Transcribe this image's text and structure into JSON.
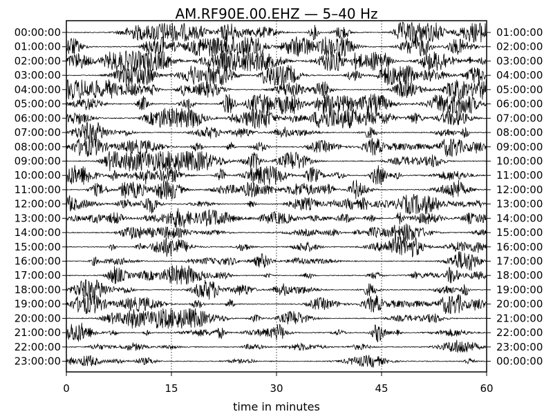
{
  "chart_data": {
    "type": "line",
    "title": "AM.RF90E.00.EHZ — 5–40 Hz",
    "xlabel": "time in minutes",
    "ylabel": "",
    "xlim": [
      0,
      60
    ],
    "x_ticks": [
      0,
      15,
      30,
      45,
      60
    ],
    "x_tick_labels": [
      "0",
      "15",
      "30",
      "45",
      "60"
    ],
    "grid": "vertical dotted lines at 15, 30, 45 minutes",
    "colors": {
      "trace": "#000000",
      "gridline": "#000000",
      "background": "#ffffff"
    },
    "rows_left_labels": [
      "00:00:00",
      "01:00:00",
      "02:00:00",
      "03:00:00",
      "04:00:00",
      "05:00:00",
      "06:00:00",
      "07:00:00",
      "08:00:00",
      "09:00:00",
      "10:00:00",
      "11:00:00",
      "12:00:00",
      "13:00:00",
      "14:00:00",
      "15:00:00",
      "16:00:00",
      "17:00:00",
      "18:00:00",
      "19:00:00",
      "20:00:00",
      "21:00:00",
      "22:00:00",
      "23:00:00"
    ],
    "rows_right_labels": [
      "01:00:00",
      "02:00:00",
      "03:00:00",
      "04:00:00",
      "05:00:00",
      "06:00:00",
      "07:00:00",
      "08:00:00",
      "09:00:00",
      "10:00:00",
      "11:00:00",
      "12:00:00",
      "13:00:00",
      "14:00:00",
      "15:00:00",
      "16:00:00",
      "17:00:00",
      "18:00:00",
      "19:00:00",
      "20:00:00",
      "21:00:00",
      "22:00:00",
      "23:00:00",
      "00:00:00"
    ],
    "row_activity": [
      0.9,
      1.0,
      1.0,
      0.95,
      0.9,
      0.85,
      0.8,
      0.55,
      0.6,
      0.75,
      0.75,
      0.7,
      0.7,
      0.65,
      0.55,
      0.5,
      0.5,
      0.6,
      0.65,
      0.6,
      0.55,
      0.55,
      0.35,
      0.35
    ]
  }
}
